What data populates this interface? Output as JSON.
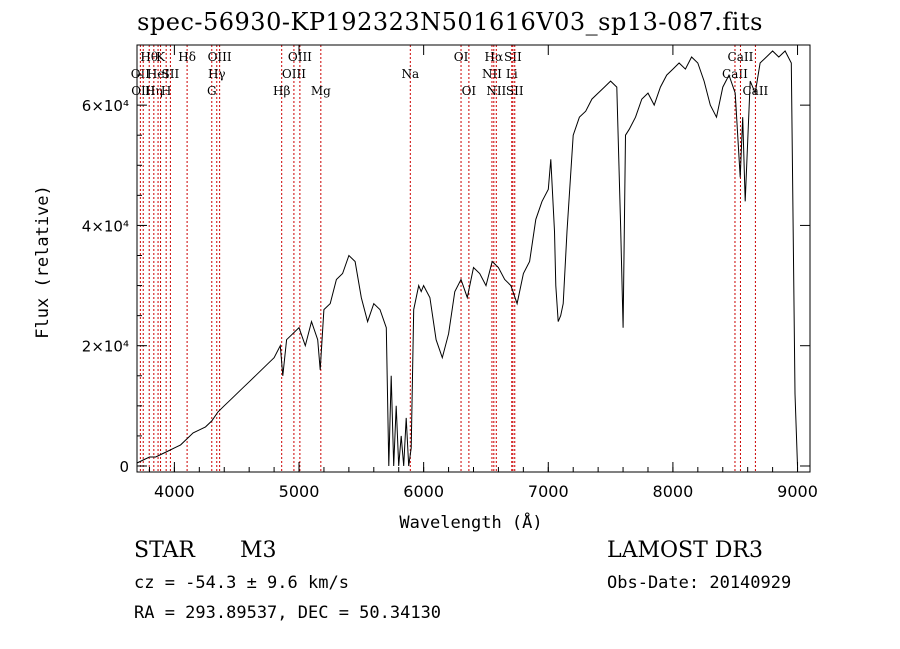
{
  "header": {
    "title": "spec-56930-KP192323N501616V03_sp13-087.fits"
  },
  "object": {
    "class": "STAR",
    "subclass": "M3",
    "survey": "LAMOST DR3"
  },
  "meta": {
    "cz": "cz = -54.3 ± 9.6 km/s",
    "coords": "RA = 293.89537, DEC =  50.34130",
    "obs_date": "Obs-Date: 20140929"
  },
  "chart_data": {
    "type": "line",
    "title": "spec-56930-KP192323N501616V03_sp13-087.fits",
    "xlabel": "Wavelength (Å)",
    "ylabel": "Flux (relative)",
    "xlim": [
      3700,
      9100
    ],
    "ylim": [
      -1000,
      70000
    ],
    "x_ticks": [
      4000,
      5000,
      6000,
      7000,
      8000,
      9000
    ],
    "y_ticks": [
      {
        "value": 0,
        "label": "0"
      },
      {
        "value": 20000,
        "label": "2×10⁴"
      },
      {
        "value": 40000,
        "label": "4×10⁴"
      },
      {
        "value": 60000,
        "label": "6×10⁴"
      }
    ],
    "line_color": "#000000",
    "marker_color": "#cc0000",
    "series": [
      {
        "x": [
          3700,
          3750,
          3800,
          3850,
          3900,
          3950,
          4000,
          4050,
          4100,
          4150,
          4200,
          4250,
          4300,
          4350,
          4400,
          4450,
          4500,
          4550,
          4600,
          4650,
          4700,
          4750,
          4800,
          4850,
          4870,
          4900,
          4950,
          5000,
          5050,
          5100,
          5150,
          5170,
          5200,
          5250,
          5300,
          5350,
          5400,
          5450,
          5500,
          5550,
          5600,
          5650,
          5700,
          5720,
          5740,
          5760,
          5780,
          5800,
          5820,
          5840,
          5860,
          5880,
          5900,
          5920,
          5940,
          5960,
          5980,
          6000,
          6050,
          6100,
          6150,
          6200,
          6250,
          6300,
          6350,
          6400,
          6450,
          6500,
          6550,
          6600,
          6650,
          6700,
          6750,
          6800,
          6850,
          6900,
          6950,
          7000,
          7020,
          7050,
          7060,
          7080,
          7100,
          7120,
          7150,
          7200,
          7250,
          7300,
          7350,
          7400,
          7450,
          7500,
          7550,
          7580,
          7600,
          7620,
          7650,
          7700,
          7750,
          7800,
          7850,
          7900,
          7950,
          8000,
          8050,
          8100,
          8150,
          8200,
          8250,
          8300,
          8350,
          8400,
          8450,
          8500,
          8540,
          8560,
          8580,
          8620,
          8660,
          8700,
          8750,
          8800,
          8850,
          8900,
          8950,
          8980,
          9000
        ],
        "y": [
          500,
          1000,
          1500,
          1500,
          2000,
          2500,
          3000,
          3500,
          4500,
          5500,
          6000,
          6500,
          7500,
          9000,
          10000,
          11000,
          12000,
          13000,
          14000,
          15000,
          16000,
          17000,
          18000,
          20000,
          15000,
          21000,
          22000,
          23000,
          20000,
          24000,
          21000,
          16000,
          26000,
          27000,
          31000,
          32000,
          35000,
          34000,
          28000,
          24000,
          27000,
          26000,
          23000,
          0,
          15000,
          0,
          10000,
          0,
          5000,
          0,
          8000,
          0,
          3000,
          26000,
          28000,
          30000,
          29000,
          30000,
          28000,
          21000,
          18000,
          22000,
          29000,
          31000,
          28000,
          33000,
          32000,
          30000,
          34000,
          33000,
          31000,
          30000,
          27000,
          32000,
          34000,
          41000,
          44000,
          46000,
          51000,
          39000,
          30000,
          24000,
          25000,
          27000,
          39000,
          55000,
          58000,
          59000,
          61000,
          62000,
          63000,
          64000,
          63000,
          40000,
          23000,
          55000,
          56000,
          58000,
          61000,
          62000,
          60000,
          63000,
          65000,
          66000,
          67000,
          66000,
          68000,
          67000,
          64000,
          60000,
          58000,
          63000,
          65000,
          62000,
          48000,
          58000,
          44000,
          64000,
          62000,
          67000,
          68000,
          69000,
          68000,
          69000,
          67000,
          12000,
          0
        ]
      }
    ],
    "line_markers": [
      {
        "x": 3727,
        "row": 1,
        "label": "OII"
      },
      {
        "x": 3750,
        "row": 2,
        "label": "OIII"
      },
      {
        "x": 3798,
        "row": 0,
        "label": "Hθ"
      },
      {
        "x": 3835,
        "row": 2,
        "label": "Hη"
      },
      {
        "x": 3869,
        "row": 1,
        "label": "HeI"
      },
      {
        "x": 3889,
        "row": 0,
        "label": "K"
      },
      {
        "x": 3934,
        "row": 2,
        "label": "H"
      },
      {
        "x": 3968,
        "row": 1,
        "label": "SII"
      },
      {
        "x": 4102,
        "row": 0,
        "label": "Hδ"
      },
      {
        "x": 4300,
        "row": 2,
        "label": "G"
      },
      {
        "x": 4340,
        "row": 1,
        "label": "Hγ"
      },
      {
        "x": 4363,
        "row": 0,
        "label": "OIII"
      },
      {
        "x": 4861,
        "row": 2,
        "label": "Hβ"
      },
      {
        "x": 4959,
        "row": 1,
        "label": "OIII"
      },
      {
        "x": 5007,
        "row": 0,
        "label": "OIII"
      },
      {
        "x": 5175,
        "row": 2,
        "label": "Mg"
      },
      {
        "x": 5893,
        "row": 1,
        "label": "Na"
      },
      {
        "x": 6300,
        "row": 0,
        "label": "OI"
      },
      {
        "x": 6363,
        "row": 2,
        "label": "OI"
      },
      {
        "x": 6548,
        "row": 1,
        "label": "NII"
      },
      {
        "x": 6563,
        "row": 0,
        "label": "Hα"
      },
      {
        "x": 6583,
        "row": 2,
        "label": "NII"
      },
      {
        "x": 6707,
        "row": 1,
        "label": "Li"
      },
      {
        "x": 6716,
        "row": 0,
        "label": "SII"
      },
      {
        "x": 6731,
        "row": 2,
        "label": "SII"
      },
      {
        "x": 8498,
        "row": 1,
        "label": "CaII"
      },
      {
        "x": 8542,
        "row": 0,
        "label": "CaII"
      },
      {
        "x": 8662,
        "row": 2,
        "label": "CaII"
      }
    ]
  }
}
